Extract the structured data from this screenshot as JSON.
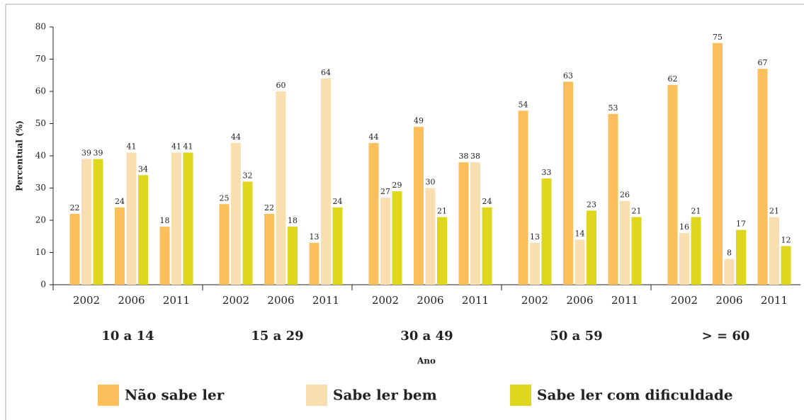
{
  "chart_data": {
    "type": "bar",
    "ylabel": "Percentual (%)",
    "xlabel": "Ano",
    "groups": [
      "10 a 14",
      "15 a 29",
      "30 a 49",
      "50 a 59",
      "> = 60"
    ],
    "categories": [
      "2002",
      "2006",
      "2011",
      "2002",
      "2006",
      "2011",
      "2002",
      "2006",
      "2011",
      "2002",
      "2006",
      "2011",
      "2002",
      "2006",
      "2011"
    ],
    "series": [
      {
        "name": "Não sabe ler",
        "color": "#fbbf5c",
        "values": [
          22,
          24,
          18,
          25,
          22,
          13,
          44,
          49,
          38,
          54,
          63,
          53,
          62,
          75,
          67
        ]
      },
      {
        "name": "Sabe ler bem",
        "color": "#f9deb0",
        "values": [
          39,
          41,
          41,
          44,
          60,
          64,
          27,
          30,
          38,
          13,
          14,
          26,
          16,
          8,
          21
        ]
      },
      {
        "name": "Sabe ler com dificuldade",
        "color": "#dfd61e",
        "values": [
          39,
          34,
          41,
          32,
          18,
          24,
          29,
          21,
          24,
          33,
          23,
          21,
          21,
          17,
          12
        ]
      }
    ],
    "ylim": [
      0,
      80
    ],
    "yticks": [
      0,
      10,
      20,
      30,
      40,
      50,
      60,
      70,
      80
    ]
  }
}
